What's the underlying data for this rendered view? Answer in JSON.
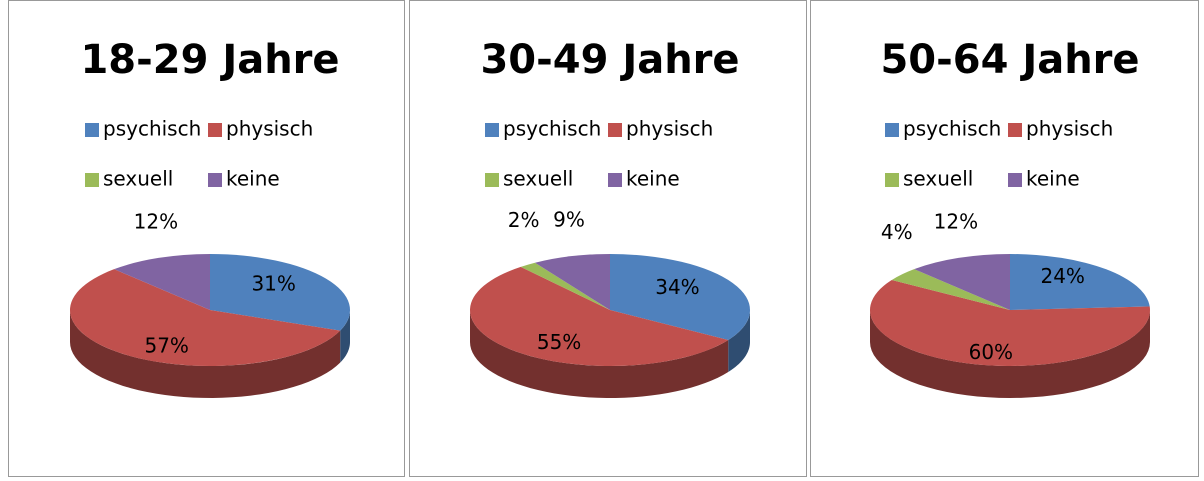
{
  "chart_data": [
    {
      "type": "pie",
      "title": "18-29 Jahre",
      "categories": [
        "psychisch",
        "physisch",
        "sexuell",
        "keine"
      ],
      "values": [
        31,
        57,
        0,
        12
      ],
      "value_labels": [
        "31%",
        "57%",
        null,
        "12%"
      ],
      "colors": [
        "#4f81bd",
        "#c0504d",
        "#9bbb59",
        "#8064a2"
      ]
    },
    {
      "type": "pie",
      "title": "30-49 Jahre",
      "categories": [
        "psychisch",
        "physisch",
        "sexuell",
        "keine"
      ],
      "values": [
        34,
        55,
        2,
        9
      ],
      "value_labels": [
        "34%",
        "55%",
        "2%",
        "9%"
      ],
      "colors": [
        "#4f81bd",
        "#c0504d",
        "#9bbb59",
        "#8064a2"
      ]
    },
    {
      "type": "pie",
      "title": "50-64 Jahre",
      "categories": [
        "psychisch",
        "physisch",
        "sexuell",
        "keine"
      ],
      "values": [
        24,
        60,
        4,
        12
      ],
      "value_labels": [
        "24%",
        "60%",
        "4%",
        "12%"
      ],
      "colors": [
        "#4f81bd",
        "#c0504d",
        "#9bbb59",
        "#8064a2"
      ]
    }
  ]
}
